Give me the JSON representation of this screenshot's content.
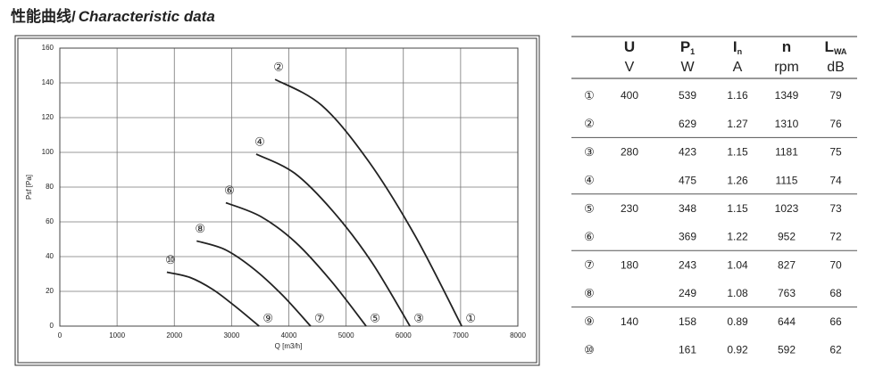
{
  "title": {
    "cn": "性能曲线/",
    "en": "Characteristic data"
  },
  "chart_data": {
    "type": "line",
    "x_label": "Q [m3/h]",
    "y_label": "Psf [Pa]",
    "xlim": [
      0,
      8000
    ],
    "xticks": [
      0,
      1000,
      2000,
      3000,
      4000,
      5000,
      6000,
      7000,
      8000
    ],
    "ylim": [
      0,
      160
    ],
    "yticks": [
      0,
      20,
      40,
      60,
      80,
      100,
      120,
      140,
      160
    ],
    "grid": true,
    "series": [
      {
        "start_label": "②",
        "end_label": "①",
        "color": "#222",
        "x": [
          3760,
          4575,
          5390,
          6205,
          7020
        ],
        "values": [
          142,
          127,
          95,
          52,
          0
        ]
      },
      {
        "start_label": "④",
        "end_label": "③",
        "color": "#222",
        "x": [
          3430,
          4101,
          4773,
          5444,
          6115
        ],
        "values": [
          99,
          88,
          66,
          37,
          0
        ]
      },
      {
        "start_label": "⑥",
        "end_label": "⑤",
        "color": "#222",
        "x": [
          2900,
          3513,
          4125,
          4738,
          5350
        ],
        "values": [
          71,
          63,
          48,
          26,
          0
        ]
      },
      {
        "start_label": "⑧",
        "end_label": "⑦",
        "color": "#222",
        "x": [
          2390,
          2888,
          3385,
          3883,
          4380
        ],
        "values": [
          49,
          44,
          33,
          18,
          0
        ]
      },
      {
        "start_label": "⑩",
        "end_label": "⑨",
        "color": "#222",
        "x": [
          1870,
          2273,
          2675,
          3078,
          3480
        ],
        "values": [
          31,
          28,
          21,
          11,
          0
        ]
      }
    ]
  },
  "table": {
    "headers": [
      {
        "symbol": "U",
        "unit": "V"
      },
      {
        "symbol": "P",
        "sub": "1",
        "unit": "W"
      },
      {
        "symbol": "I",
        "sub": "n",
        "unit": "A"
      },
      {
        "symbol": "n",
        "unit": "rpm"
      },
      {
        "symbol": "L",
        "sub": "WA",
        "unit": "dB"
      }
    ],
    "rows": [
      [
        "①",
        "400",
        "539",
        "1.16",
        "1349",
        "79"
      ],
      [
        "②",
        null,
        "629",
        "1.27",
        "1310",
        "76"
      ],
      [
        "③",
        "280",
        "423",
        "1.15",
        "1181",
        "75"
      ],
      [
        "④",
        null,
        "475",
        "1.26",
        "1115",
        "74"
      ],
      [
        "⑤",
        "230",
        "348",
        "1.15",
        "1023",
        "73"
      ],
      [
        "⑥",
        null,
        "369",
        "1.22",
        "952",
        "72"
      ],
      [
        "⑦",
        "180",
        "243",
        "1.04",
        "827",
        "70"
      ],
      [
        "⑧",
        null,
        "249",
        "1.08",
        "763",
        "68"
      ],
      [
        "⑨",
        "140",
        "158",
        "0.89",
        "644",
        "66"
      ],
      [
        "⑩",
        null,
        "161",
        "0.92",
        "592",
        "62"
      ]
    ]
  }
}
